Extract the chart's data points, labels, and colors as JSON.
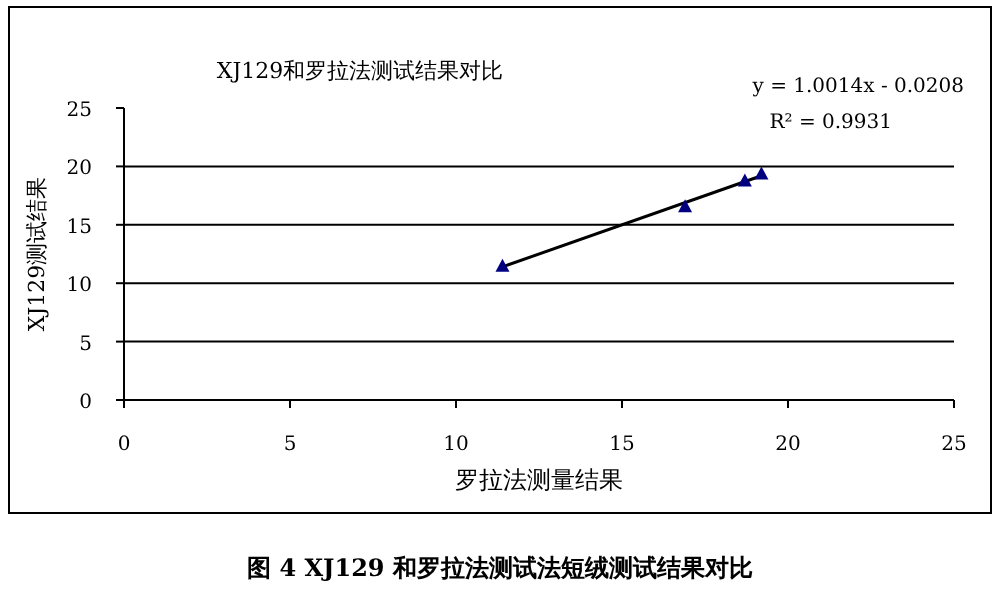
{
  "chart_data": {
    "type": "scatter",
    "title": "XJ129和罗拉法测试结果对比",
    "xlabel": "罗拉法测量结果",
    "ylabel": "XJ129测试结果",
    "x": [
      11.4,
      16.9,
      18.7,
      19.2
    ],
    "series": [
      {
        "color": "#000080",
        "marker": "triangle",
        "values": [
          11.4,
          16.5,
          18.7,
          19.3
        ]
      },
      {
        "type": "line",
        "color": "#000000",
        "marker": "none",
        "x": [
          11.4,
          19.2
        ],
        "values": [
          11.4,
          19.2
        ]
      }
    ],
    "xlim": [
      0,
      25
    ],
    "xticks": [
      0,
      5,
      10,
      15,
      20,
      25
    ],
    "ylim": [
      0,
      25
    ],
    "yticks": [
      0,
      5,
      10,
      15,
      20,
      25
    ],
    "grid": "y",
    "annotations": [
      "y = 1.0014x - 0.0208",
      "R² = 0.9931",
      "图 4   XJ129 和罗拉法测试法短绒测试结果对比"
    ]
  }
}
